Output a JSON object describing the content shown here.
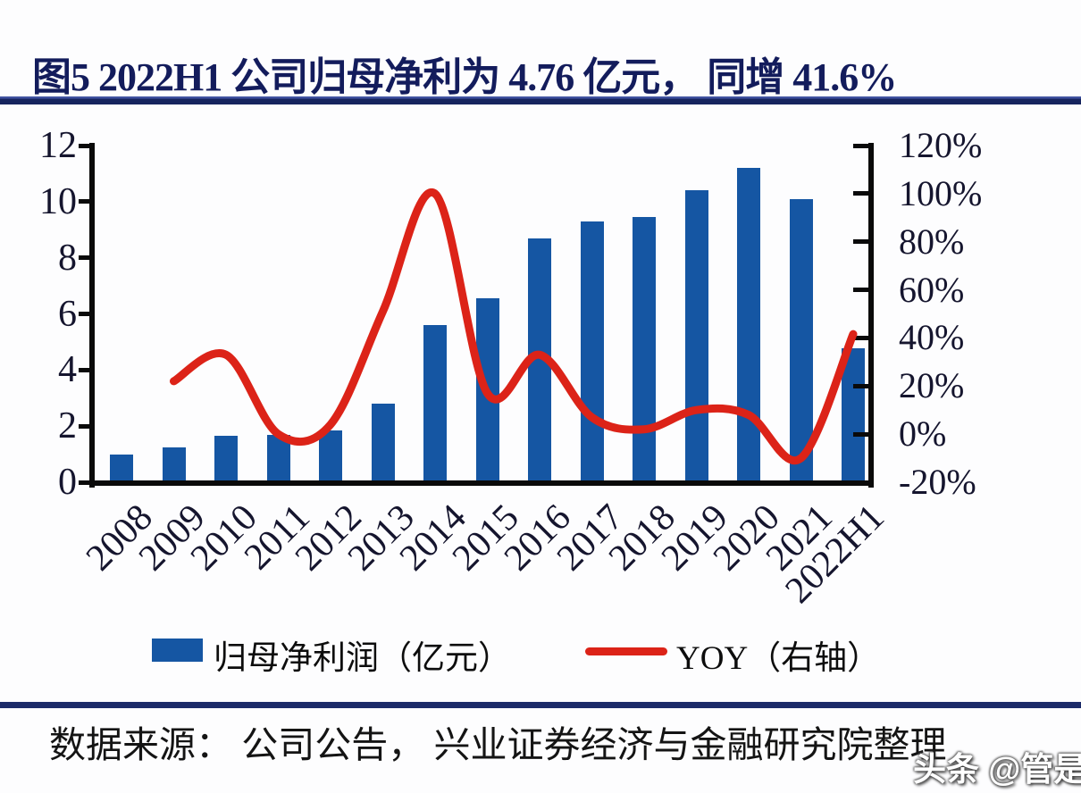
{
  "title": {
    "text": "图5 2022H1 公司归母净利为 4.76 亿元， 同增 41.6%"
  },
  "source": {
    "text": "数据来源： 公司公告， 兴业证券经济与金融研究院整理"
  },
  "watermark": {
    "text": "头条 @管是"
  },
  "legend": [
    {
      "label": "归母净利润（亿元）",
      "type": "bar"
    },
    {
      "label": "YOY（右轴）",
      "type": "line"
    }
  ],
  "colors": {
    "bar": "#1556a3",
    "line": "#dc2318",
    "rule_navy": "#1c2b69",
    "title_navy": "#131c5c",
    "axis_black": "#0a0a0a"
  },
  "chart_data": {
    "type": "bar+line",
    "title": "图5 2022H1 公司归母净利为 4.76 亿元， 同增 41.6%",
    "categories": [
      "2008",
      "2009",
      "2010",
      "2011",
      "2012",
      "2013",
      "2014",
      "2015",
      "2016",
      "2017",
      "2018",
      "2019",
      "2020",
      "2021",
      "2022H1"
    ],
    "series": [
      {
        "name": "归母净利润（亿元）",
        "type": "bar",
        "axis": "left",
        "color": "#1556a3",
        "values": [
          1.0,
          1.25,
          1.65,
          1.7,
          1.85,
          2.8,
          5.6,
          6.55,
          8.7,
          9.3,
          9.45,
          10.4,
          11.2,
          10.1,
          4.76
        ]
      },
      {
        "name": "YOY（右轴）",
        "type": "line",
        "axis": "right",
        "color": "#dc2318",
        "values": [
          null,
          22,
          33,
          0,
          4,
          51,
          100,
          17,
          33,
          7,
          2,
          10,
          8,
          -10,
          41.6
        ]
      }
    ],
    "left_axis": {
      "range": [
        0,
        12
      ],
      "ticks": [
        0,
        2,
        4,
        6,
        8,
        10,
        12
      ]
    },
    "right_axis": {
      "range": [
        -20,
        120
      ],
      "ticks": [
        -20,
        0,
        20,
        40,
        60,
        80,
        100,
        120
      ],
      "suffix": "%"
    },
    "grid": false,
    "legend_position": "bottom",
    "smoothed_line": true
  }
}
